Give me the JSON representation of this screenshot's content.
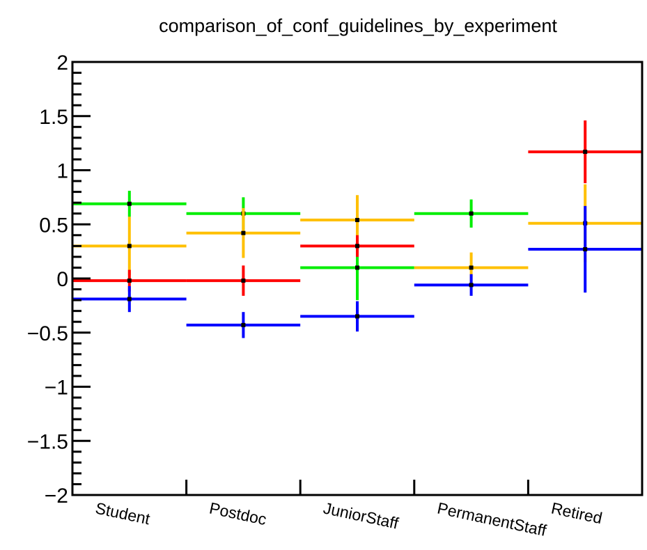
{
  "chart_data": {
    "type": "scatter",
    "title": "comparison_of_conf_guidelines_by_experiment",
    "xlabel": "",
    "ylabel": "",
    "categories": [
      "Student",
      "Postdoc",
      "JuniorStaff",
      "PermanentStaff",
      "Retired"
    ],
    "ylim": [
      -2,
      2
    ],
    "y_ticks": [
      -2,
      -1.5,
      -1,
      -0.5,
      0,
      0.5,
      1,
      1.5,
      2
    ],
    "y_tick_labels": [
      "−2",
      "−1.5",
      "−1",
      "−0.5",
      "0",
      "0.5",
      "1",
      "1.5",
      "2"
    ],
    "grid": false,
    "legend": "none",
    "series": [
      {
        "color": "#00ee00",
        "points": [
          {
            "category": "Student",
            "y": 0.69,
            "err": 0.12
          },
          {
            "category": "Postdoc",
            "y": 0.6,
            "err": 0.15
          },
          {
            "category": "JuniorStaff",
            "y": 0.1,
            "err": 0.3
          },
          {
            "category": "PermanentStaff",
            "y": 0.6,
            "err": 0.13
          }
        ]
      },
      {
        "color": "#ffc000",
        "points": [
          {
            "category": "Student",
            "y": 0.3,
            "err": 0.27
          },
          {
            "category": "Postdoc",
            "y": 0.42,
            "err": 0.23
          },
          {
            "category": "JuniorStaff",
            "y": 0.54,
            "err": 0.23
          },
          {
            "category": "PermanentStaff",
            "y": 0.1,
            "err": 0.14
          },
          {
            "category": "Retired",
            "y": 0.51,
            "err": 0.36
          }
        ]
      },
      {
        "color": "#ff0000",
        "points": [
          {
            "category": "Student",
            "y": -0.02,
            "err": 0.1
          },
          {
            "category": "Postdoc",
            "y": -0.02,
            "err": 0.14
          },
          {
            "category": "JuniorStaff",
            "y": 0.3,
            "err": 0.1
          },
          {
            "category": "Retired",
            "y": 1.17,
            "err": 0.29
          }
        ]
      },
      {
        "color": "#0000ff",
        "points": [
          {
            "category": "Student",
            "y": -0.19,
            "err": 0.12
          },
          {
            "category": "Postdoc",
            "y": -0.43,
            "err": 0.12
          },
          {
            "category": "JuniorStaff",
            "y": -0.35,
            "err": 0.14
          },
          {
            "category": "PermanentStaff",
            "y": -0.06,
            "err": 0.1
          },
          {
            "category": "Retired",
            "y": 0.27,
            "err": 0.4
          }
        ]
      }
    ]
  }
}
